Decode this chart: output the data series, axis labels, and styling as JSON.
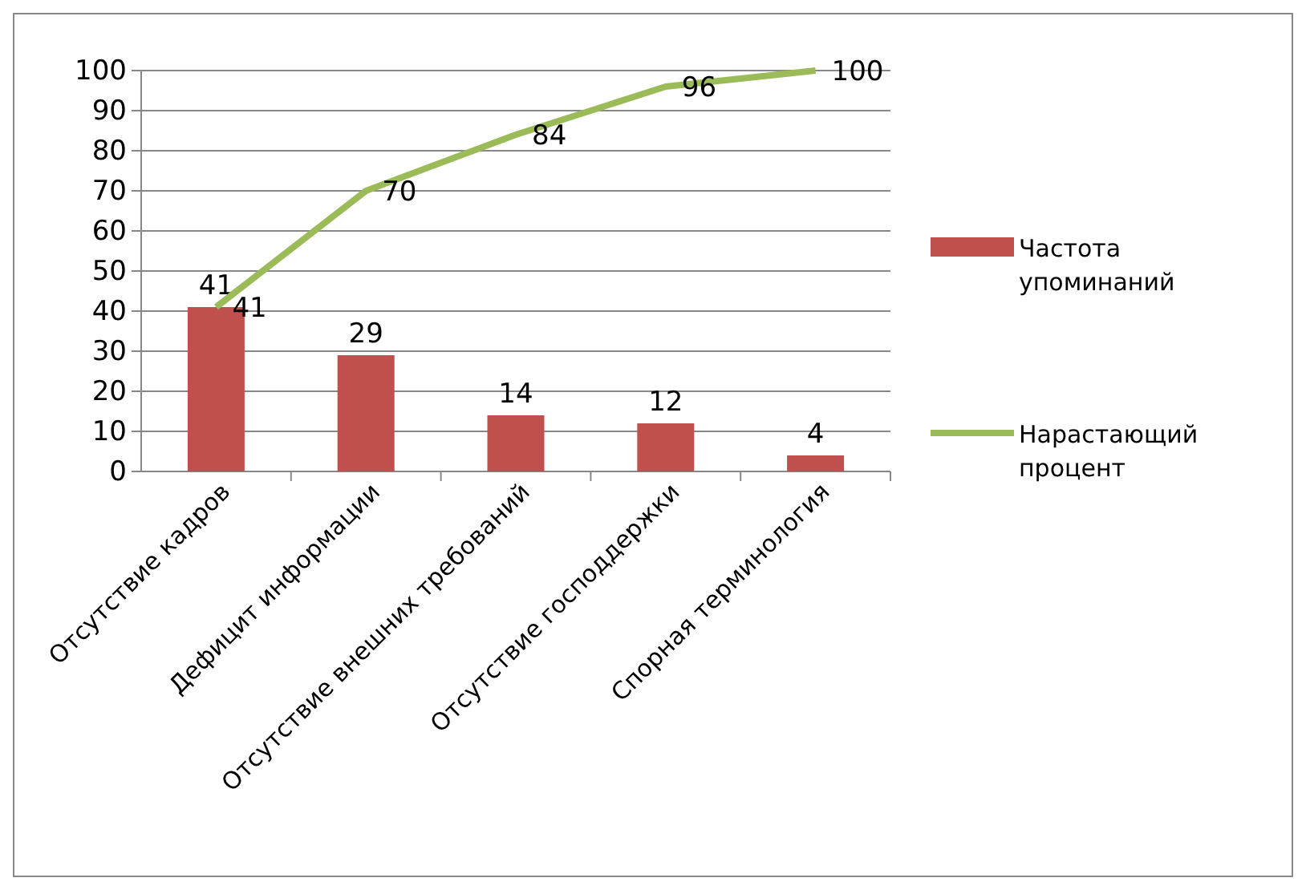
{
  "chart_data": {
    "type": "bar",
    "categories": [
      "Отсутствие кадров",
      "Дефицит информации",
      "Отсутствие внешних требований",
      "Отсутствие господдержки",
      "Спорная терминология"
    ],
    "series": [
      {
        "name": "Частота упоминаний",
        "color": "#c0504d",
        "values": [
          41,
          29,
          14,
          12,
          4
        ]
      },
      {
        "name": "Нарастающий процент",
        "type": "line",
        "color": "#9bbb59",
        "values": [
          41,
          70,
          84,
          96,
          100
        ]
      }
    ],
    "ylim": [
      0,
      100
    ],
    "yticks": [
      0,
      10,
      20,
      30,
      40,
      50,
      60,
      70,
      80,
      90,
      100
    ],
    "grid": "y",
    "legend": "right",
    "data_labels": true,
    "marker": "none",
    "line_style": "solid"
  }
}
